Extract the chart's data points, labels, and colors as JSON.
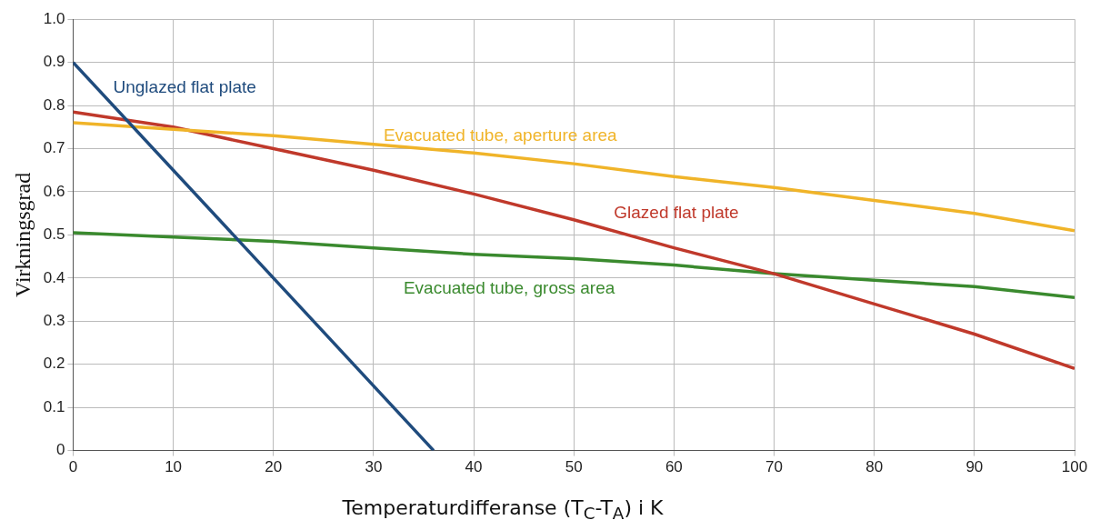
{
  "chart_data": {
    "type": "line",
    "xlabel": "Temperaturdifferanse (T$_{C}$-T$_{A}$) i K",
    "ylabel": "Virkningsgrad",
    "series": [
      {
        "name": "Unglazed flat plate",
        "color": "#1f4b7d",
        "x": [
          0,
          36
        ],
        "values": [
          0.9,
          0
        ]
      },
      {
        "name": "Evacuated tube, aperture area",
        "color": "#f0b429",
        "x": [
          0,
          10,
          20,
          30,
          40,
          50,
          60,
          70,
          80,
          90,
          100
        ],
        "values": [
          0.76,
          0.745,
          0.73,
          0.71,
          0.69,
          0.665,
          0.635,
          0.61,
          0.58,
          0.55,
          0.51
        ]
      },
      {
        "name": "Glazed flat plate",
        "color": "#c0392b",
        "x": [
          0,
          10,
          20,
          30,
          40,
          50,
          60,
          70,
          80,
          90,
          100
        ],
        "values": [
          0.785,
          0.75,
          0.7,
          0.65,
          0.595,
          0.535,
          0.47,
          0.41,
          0.34,
          0.27,
          0.19
        ]
      },
      {
        "name": "Evacuated tube, gross area",
        "color": "#3a8a2e",
        "x": [
          0,
          10,
          20,
          30,
          40,
          50,
          60,
          70,
          80,
          90,
          100
        ],
        "values": [
          0.505,
          0.495,
          0.485,
          0.47,
          0.455,
          0.445,
          0.43,
          0.41,
          0.395,
          0.38,
          0.355
        ]
      }
    ],
    "xlim": [
      0,
      100
    ],
    "xticks": [
      0,
      10,
      20,
      30,
      40,
      50,
      60,
      70,
      80,
      90,
      100
    ],
    "ylim": [
      0,
      1
    ],
    "yticks": [
      0,
      0.1,
      0.2,
      0.3,
      0.4,
      0.5,
      0.6,
      0.7,
      0.8,
      0.9,
      {
        "value": 1,
        "label": "1.0"
      }
    ],
    "grid": true,
    "legend": false,
    "marker": "none",
    "line_style": "solid"
  }
}
